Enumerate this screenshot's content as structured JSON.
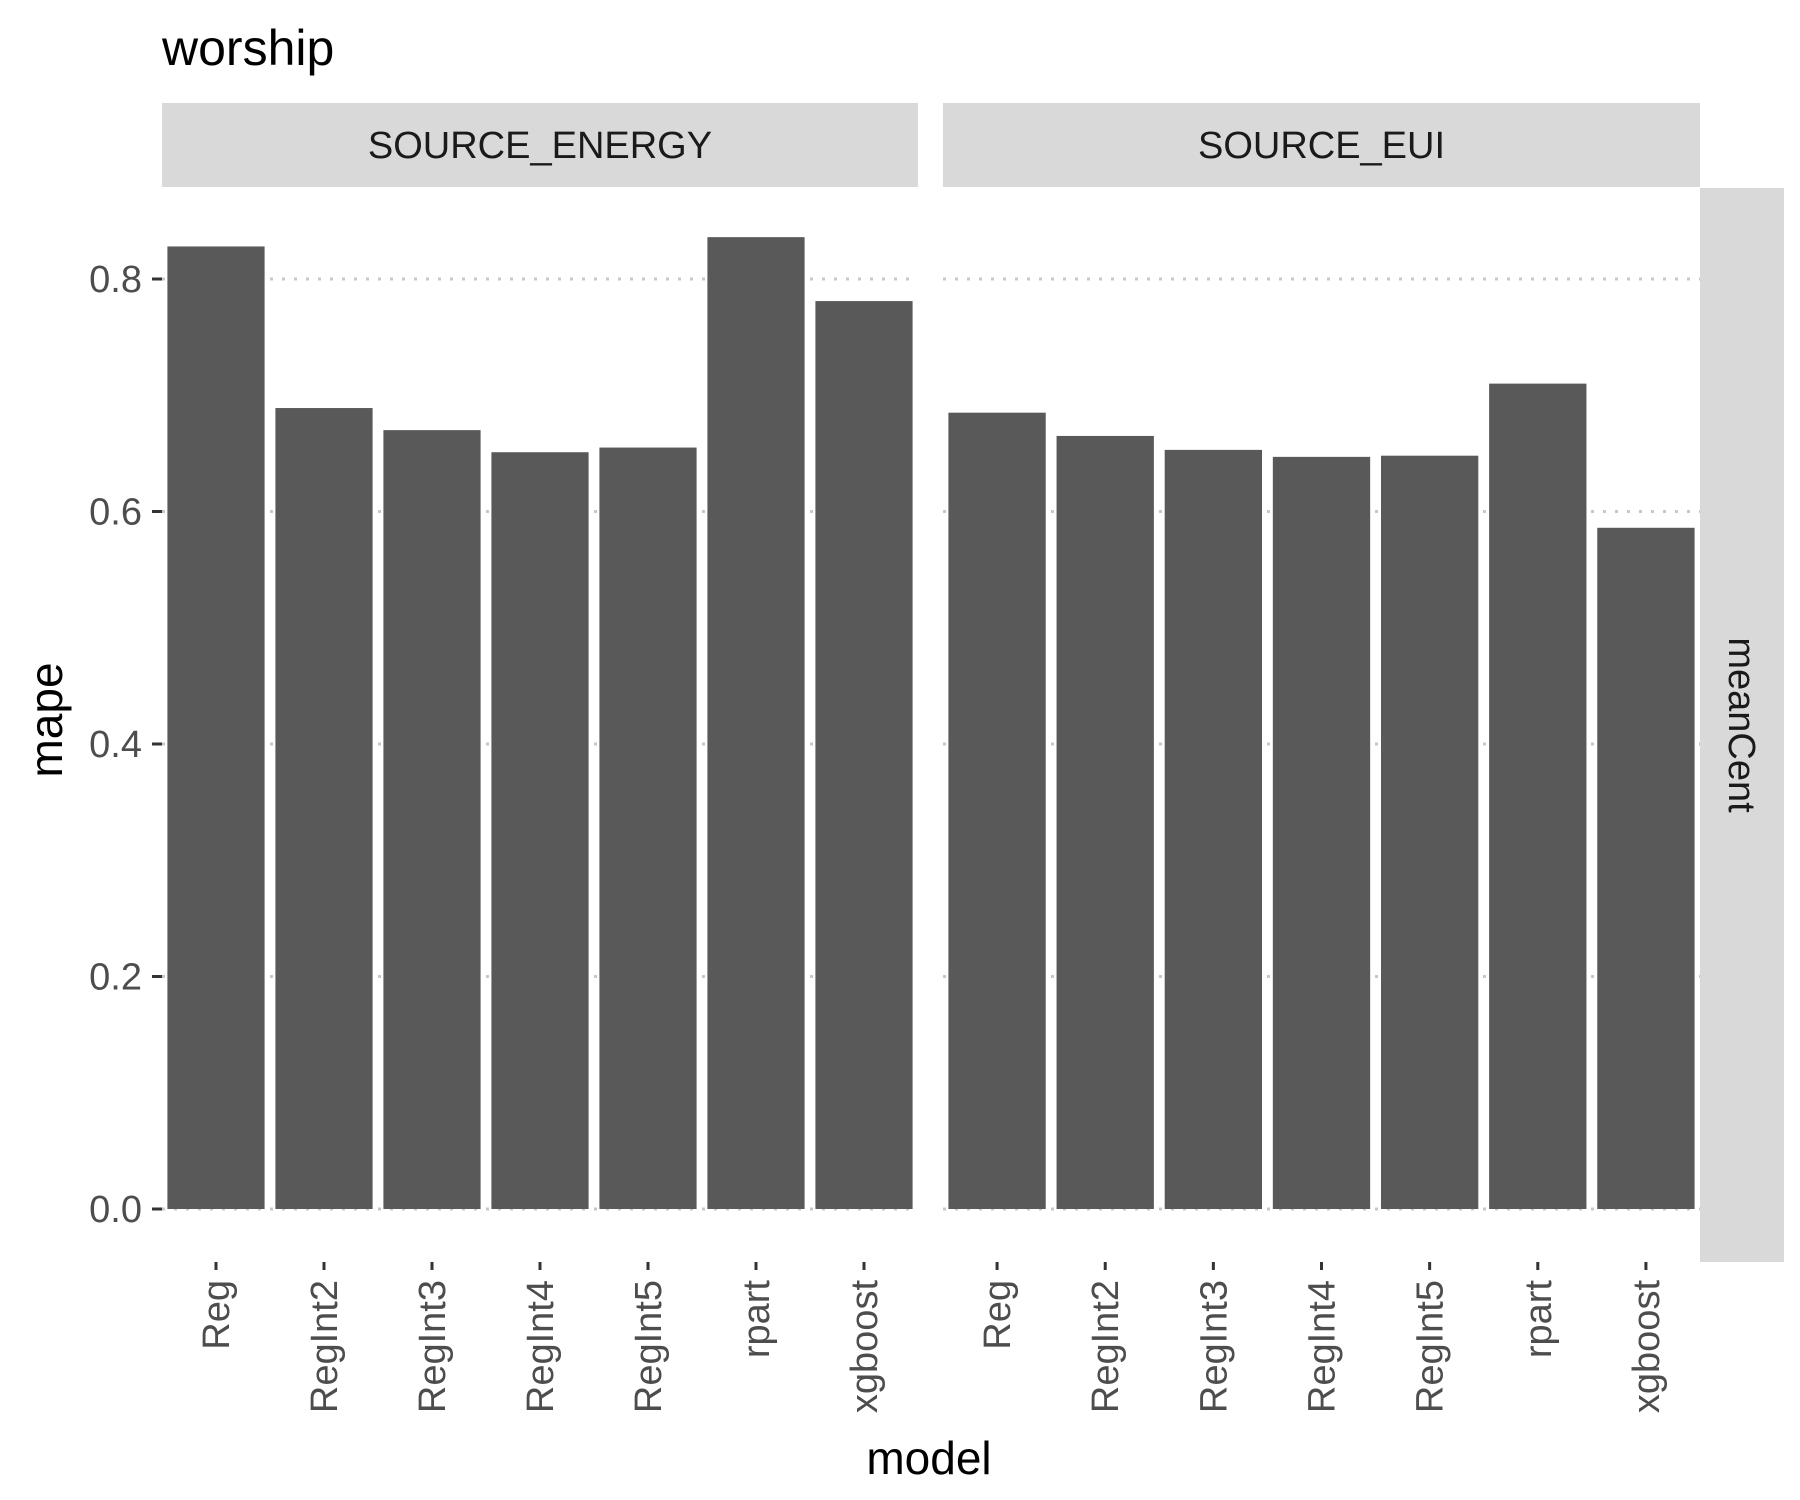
{
  "chart_data": {
    "type": "bar",
    "title": "worship",
    "xlabel": "model",
    "ylabel": "mape",
    "ylim": [
      0,
      0.85
    ],
    "yticks": [
      "0.0",
      "0.2",
      "0.4",
      "0.6",
      "0.8"
    ],
    "grid": "dotted horizontal",
    "row_strip": "meanCent",
    "categories": [
      "Reg",
      "RegInt2",
      "RegInt3",
      "RegInt4",
      "RegInt5",
      "rpart",
      "xgboost"
    ],
    "bar_color": "#595959",
    "strip_color": "#d9d9d9",
    "panels": [
      {
        "name": "SOURCE_ENERGY",
        "values": [
          0.828,
          0.689,
          0.67,
          0.651,
          0.655,
          0.836,
          0.781
        ]
      },
      {
        "name": "SOURCE_EUI",
        "values": [
          0.685,
          0.665,
          0.653,
          0.647,
          0.648,
          0.71,
          0.586
        ]
      }
    ]
  }
}
